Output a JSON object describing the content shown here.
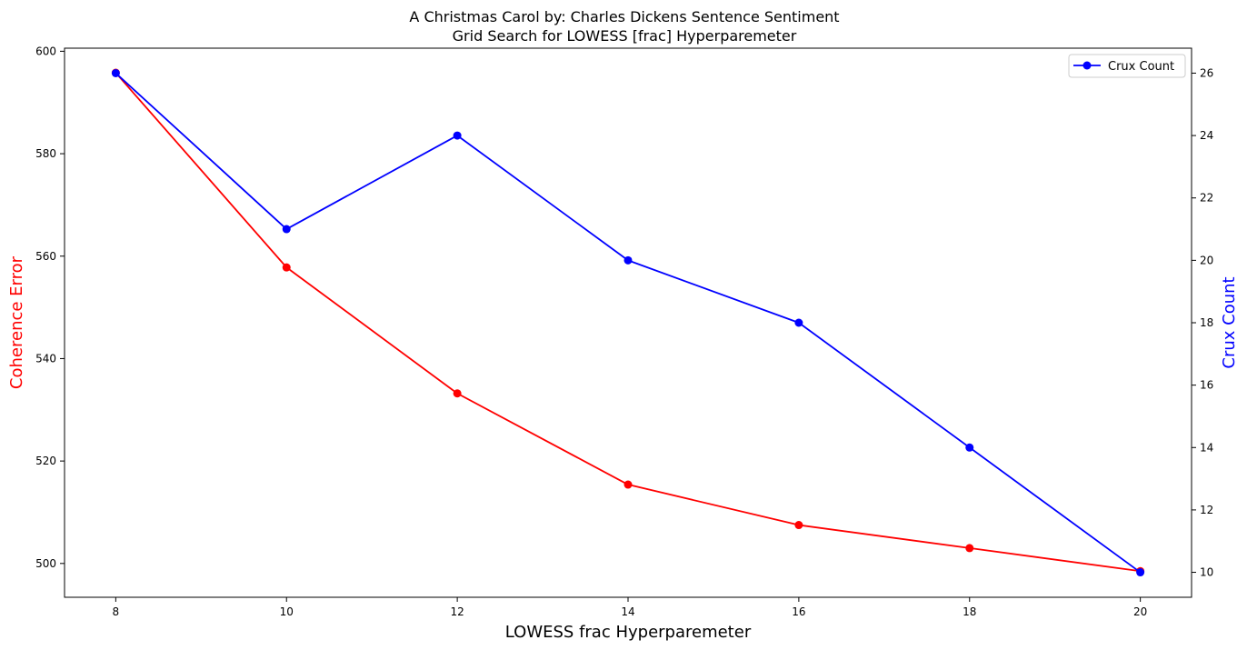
{
  "chart_data": {
    "type": "line",
    "title_line1": "A Christmas Carol by: Charles Dickens Sentence Sentiment",
    "title_line2": "Grid Search for LOWESS [frac] Hyperparemeter",
    "xlabel": "LOWESS frac Hyperparemeter",
    "ylabel_left": "Coherence Error",
    "ylabel_right": "Crux Count",
    "x": [
      8,
      10,
      12,
      14,
      16,
      18,
      20
    ],
    "x_ticks": [
      "8",
      "10",
      "12",
      "14",
      "16",
      "18",
      "20"
    ],
    "y_left_ticks": [
      "500",
      "520",
      "540",
      "560",
      "580",
      "600"
    ],
    "y_right_ticks": [
      "10",
      "12",
      "14",
      "16",
      "18",
      "20",
      "22",
      "24",
      "26"
    ],
    "xlim": [
      7.4,
      20.6
    ],
    "ylim_left": [
      493.4,
      600.6
    ],
    "ylim_right": [
      9.2,
      26.8
    ],
    "grid": false,
    "series": [
      {
        "axis": "left",
        "color": "#ff0000",
        "values": [
          595.8,
          557.8,
          533.2,
          515.4,
          507.5,
          503.0,
          498.5
        ]
      },
      {
        "name": "Crux Count",
        "axis": "right",
        "color": "#0000ff",
        "values": [
          26,
          21,
          24,
          20,
          18,
          14,
          10
        ]
      }
    ],
    "legend": {
      "position": "top-right",
      "entries": [
        "Crux Count"
      ]
    }
  }
}
